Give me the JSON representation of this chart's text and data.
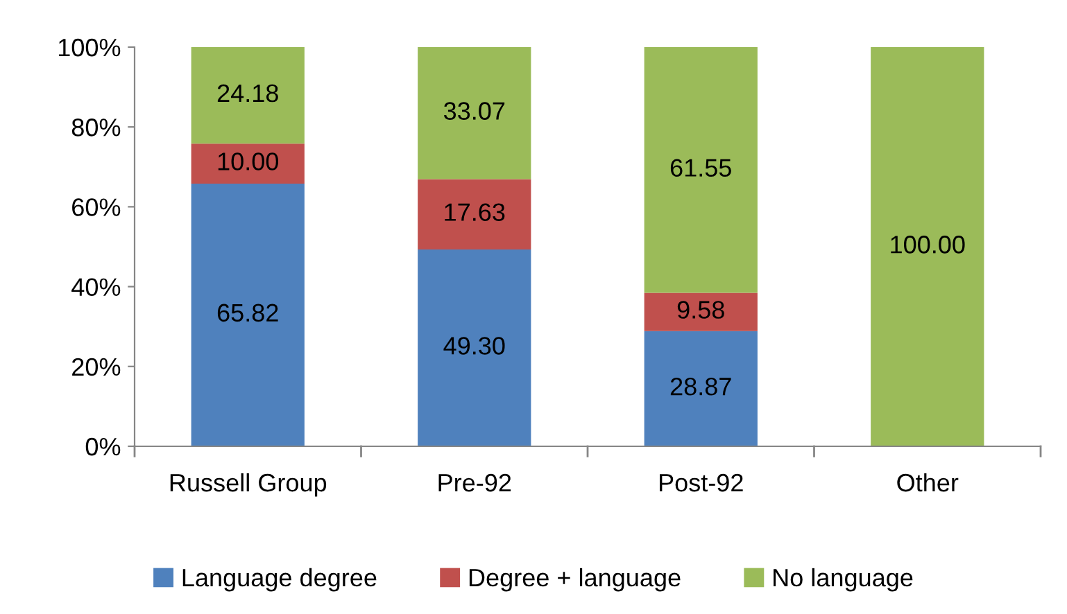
{
  "chart_data": {
    "type": "bar",
    "stacked": true,
    "categories": [
      "Russell Group",
      "Pre-92",
      "Post-92",
      "Other"
    ],
    "series": [
      {
        "name": "Language degree",
        "color": "#4f81bd",
        "values": [
          65.82,
          49.3,
          28.87,
          0
        ],
        "value_labels": [
          "65.82",
          "49.30",
          "28.87",
          null
        ]
      },
      {
        "name": "Degree + language",
        "color": "#c0504d",
        "values": [
          10.0,
          17.63,
          9.58,
          0
        ],
        "value_labels": [
          "10.00",
          "17.63",
          "9.58",
          null
        ]
      },
      {
        "name": "No language",
        "color": "#9bbb59",
        "values": [
          24.18,
          33.07,
          61.55,
          100.0
        ],
        "value_labels": [
          "24.18",
          "33.07",
          "61.55",
          "100.00"
        ]
      }
    ],
    "ylim": [
      0,
      100
    ],
    "yticks": [
      {
        "value": 0,
        "label": "0%"
      },
      {
        "value": 20,
        "label": "20%"
      },
      {
        "value": 40,
        "label": "40%"
      },
      {
        "value": 60,
        "label": "60%"
      },
      {
        "value": 80,
        "label": "80%"
      },
      {
        "value": 100,
        "label": "100%"
      }
    ],
    "grid": false,
    "legend": "bottom"
  }
}
